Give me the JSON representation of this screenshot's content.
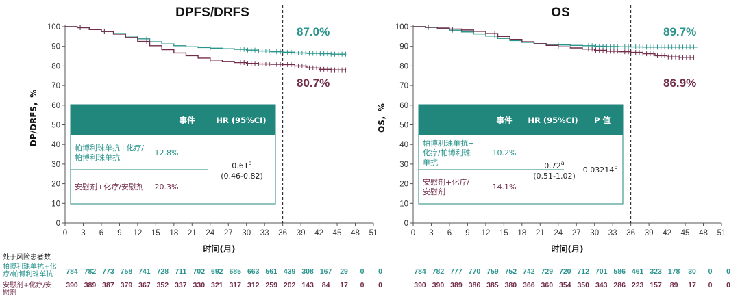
{
  "colors": {
    "pembro": "#2a948c",
    "placebo": "#722d4a",
    "header": "#21877d",
    "axis": "#555555"
  },
  "chart_data": [
    {
      "type": "line",
      "title": "DPFS/DRFS",
      "xlabel": "时间(月)",
      "ylabel": "DP/DRFS，%",
      "xlim": [
        0,
        51
      ],
      "ylim": [
        0,
        100
      ],
      "xticks": [
        "0",
        "3",
        "6",
        "9",
        "12",
        "15",
        "18",
        "21",
        "24",
        "27",
        "30",
        "33",
        "36",
        "39",
        "42",
        "45",
        "48",
        "51"
      ],
      "yticks": [
        "0",
        "10",
        "20",
        "30",
        "40",
        "50",
        "60",
        "70",
        "80",
        "90",
        "100"
      ],
      "landmark_month": 36,
      "series": [
        {
          "name": "帕博利珠单抗+化疗/帕博利珠单抗",
          "final_label": "87.0%",
          "x": [
            0,
            2,
            4,
            6,
            8,
            10,
            12,
            14,
            16,
            18,
            20,
            22,
            24,
            26,
            28,
            30,
            32,
            34,
            36,
            38,
            40,
            42,
            44,
            46.5
          ],
          "y": [
            100,
            99.5,
            98.5,
            97.5,
            96.5,
            95.2,
            93.8,
            92.3,
            91.2,
            90.3,
            89.8,
            89.4,
            89.1,
            88.8,
            88.5,
            88.1,
            87.6,
            87.2,
            87.0,
            86.6,
            86.4,
            86.2,
            86.0,
            86.0
          ]
        },
        {
          "name": "安慰剂+化疗/安慰剂",
          "final_label": "80.7%",
          "x": [
            0,
            2,
            4,
            6,
            8,
            10,
            12,
            14,
            16,
            18,
            20,
            22,
            24,
            26,
            28,
            30,
            32,
            34,
            36,
            38,
            40,
            42,
            44,
            46.5
          ],
          "y": [
            100,
            99.5,
            98.5,
            97.5,
            96.2,
            94.5,
            92.5,
            90.3,
            88.3,
            86.6,
            85.2,
            84.0,
            83.0,
            82.3,
            81.7,
            81.3,
            81.0,
            80.8,
            80.7,
            80.0,
            79.0,
            78.3,
            78.0,
            78.0
          ]
        }
      ],
      "table": {
        "headers": [
          "事件",
          "HR (95%CI)"
        ],
        "rows": [
          {
            "label": "帕博利珠单抗+化疗/帕博利珠单抗",
            "label_lines": [
              "帕博利珠单抗+化疗/",
              "帕博利珠单抗"
            ],
            "events": "12.8%"
          },
          {
            "label": "安慰剂+化疗/安慰剂",
            "label_lines": [
              "安慰剂+化疗/安慰剂"
            ],
            "events": "20.3%"
          }
        ],
        "hr": "0.61",
        "hr_sup": "a",
        "ci": "(0.46-0.82)"
      },
      "risk": {
        "pembro": [
          "784",
          "782",
          "773",
          "758",
          "741",
          "728",
          "711",
          "702",
          "692",
          "685",
          "663",
          "561",
          "439",
          "308",
          "167",
          "29",
          "0",
          "0"
        ],
        "placebo": [
          "390",
          "389",
          "387",
          "379",
          "367",
          "352",
          "337",
          "330",
          "321",
          "317",
          "312",
          "259",
          "202",
          "143",
          "84",
          "17",
          "0",
          "0"
        ]
      }
    },
    {
      "type": "line",
      "title": "OS",
      "xlabel": "时间(月)",
      "ylabel": "OS，%",
      "xlim": [
        0,
        51
      ],
      "ylim": [
        0,
        100
      ],
      "xticks": [
        "0",
        "3",
        "6",
        "9",
        "12",
        "15",
        "18",
        "21",
        "24",
        "27",
        "30",
        "33",
        "36",
        "39",
        "42",
        "45",
        "48",
        "51"
      ],
      "yticks": [
        "0",
        "10",
        "20",
        "30",
        "40",
        "50",
        "60",
        "70",
        "80",
        "90",
        "100"
      ],
      "landmark_month": 36,
      "series": [
        {
          "name": "帕博利珠单抗+化疗/帕博利珠单抗",
          "final_label": "89.7%",
          "x": [
            0,
            2,
            4,
            6,
            8,
            10,
            12,
            14,
            16,
            18,
            20,
            22,
            24,
            26,
            28,
            30,
            32,
            34,
            36,
            38,
            40,
            42,
            44,
            47
          ],
          "y": [
            100,
            99.6,
            99.0,
            98.2,
            97.3,
            96.3,
            95.2,
            94.0,
            92.9,
            92.0,
            91.4,
            91.0,
            90.7,
            90.5,
            90.3,
            90.1,
            89.9,
            89.8,
            89.7,
            89.6,
            89.6,
            89.6,
            89.6,
            89.6
          ]
        },
        {
          "name": "安慰剂+化疗/安慰剂",
          "final_label": "86.9%",
          "x": [
            0,
            2,
            4,
            6,
            8,
            10,
            12,
            14,
            16,
            18,
            20,
            22,
            24,
            26,
            28,
            30,
            32,
            34,
            36,
            38,
            40,
            42,
            44,
            46.5
          ],
          "y": [
            100,
            99.7,
            99.3,
            98.8,
            98.3,
            97.6,
            96.5,
            95.0,
            93.5,
            92.3,
            91.3,
            90.5,
            89.8,
            89.2,
            88.6,
            88.0,
            87.5,
            87.2,
            86.9,
            86.2,
            85.2,
            84.6,
            84.4,
            84.4
          ]
        }
      ],
      "table": {
        "headers": [
          "事件",
          "HR (95%CI)",
          "P 值"
        ],
        "rows": [
          {
            "label": "帕博利珠单抗+化疗/帕博利珠单抗",
            "label_lines": [
              "帕博利珠单抗+",
              "化疗/帕博利珠",
              "单抗"
            ],
            "events": "10.2%"
          },
          {
            "label": "安慰剂+化疗/安慰剂",
            "label_lines": [
              "安慰剂+化疗/",
              "安慰剂"
            ],
            "events": "14.1%"
          }
        ],
        "hr": "0.72",
        "hr_sup": "a",
        "ci": "(0.51-1.02)",
        "p": "0.03214",
        "p_sup": "b"
      },
      "risk": {
        "pembro": [
          "784",
          "782",
          "777",
          "770",
          "759",
          "752",
          "742",
          "729",
          "720",
          "712",
          "701",
          "586",
          "461",
          "323",
          "178",
          "30",
          "0",
          "0"
        ],
        "placebo": [
          "390",
          "390",
          "389",
          "386",
          "385",
          "380",
          "366",
          "360",
          "354",
          "350",
          "343",
          "286",
          "223",
          "157",
          "89",
          "17",
          "0",
          "0"
        ]
      }
    }
  ],
  "risk_title": "处于风险患者数",
  "risk_row_labels": {
    "pembro": [
      "帕博利珠单抗+化",
      "疗/帕博利珠单抗"
    ],
    "placebo": [
      "安慰剂+化疗/安",
      "慰剂"
    ]
  }
}
